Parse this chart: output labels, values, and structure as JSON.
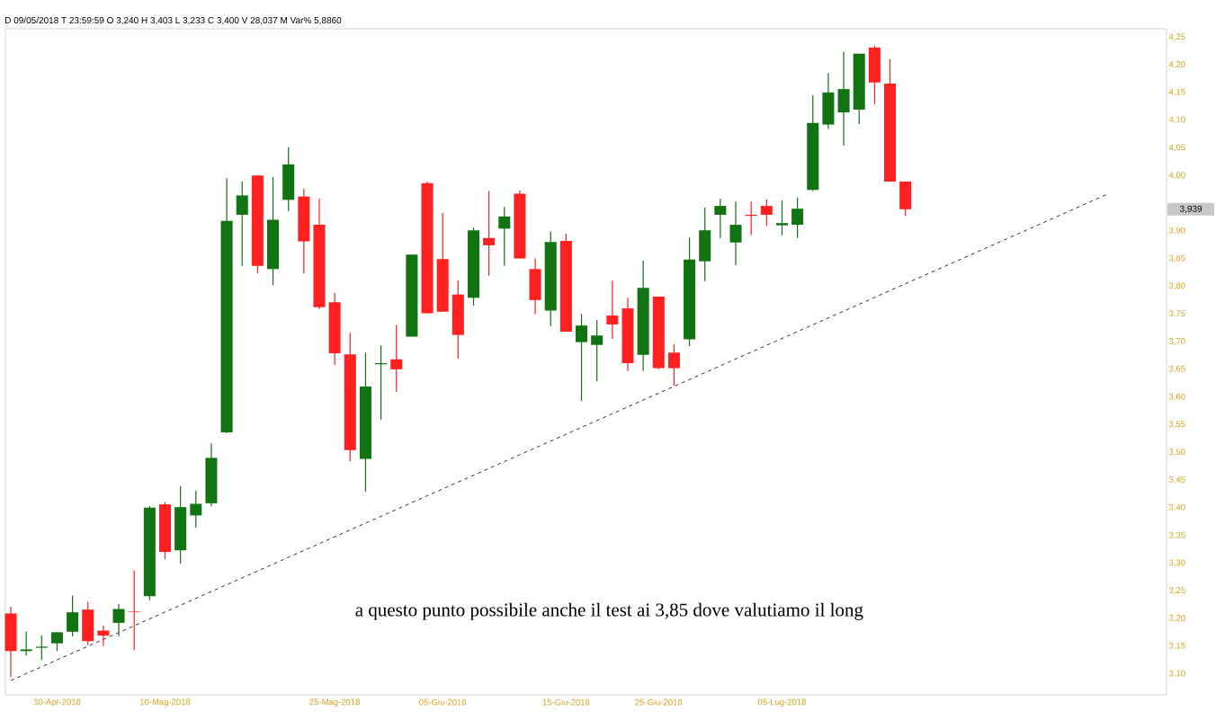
{
  "chart_data": {
    "type": "candlestick",
    "subtitle": "D 09/05/2018  T 23:59:59   O 3,240  H 3,403  L 3,233  C 3,400   V 28,037 M   Var% 5,8860",
    "annotations": [
      "a questo punto possibile anche il test ai 3,85 dove valutiamo il long",
      "3,939"
    ],
    "categories": [
      null,
      null,
      null,
      "30-Apr-2018",
      null,
      null,
      null,
      null,
      null,
      null,
      "10-Mag-2018",
      null,
      null,
      null,
      null,
      null,
      null,
      null,
      null,
      null,
      null,
      "25-Mag-2018",
      null,
      null,
      null,
      null,
      null,
      null,
      "05-Giu-2018",
      null,
      null,
      null,
      null,
      null,
      null,
      null,
      "15-Giu-2018",
      null,
      null,
      null,
      null,
      null,
      "25-Giu-2018",
      null,
      null,
      null,
      null,
      null,
      null,
      null,
      "05-Lug-2018",
      null,
      null,
      null,
      null,
      null,
      null,
      null,
      null,
      null,
      null,
      null,
      null,
      null,
      null,
      null,
      null,
      null,
      null,
      null,
      null,
      null,
      null,
      null,
      null
    ],
    "ohlc": [
      [
        3.209,
        3.221,
        3.094,
        3.141
      ],
      [
        3.141,
        3.176,
        3.133,
        3.144
      ],
      [
        3.147,
        3.169,
        3.125,
        3.149
      ],
      [
        3.155,
        3.175,
        3.141,
        3.175
      ],
      [
        3.176,
        3.241,
        3.168,
        3.211
      ],
      [
        3.216,
        3.23,
        3.152,
        3.159
      ],
      [
        3.178,
        3.187,
        3.15,
        3.169
      ],
      [
        3.192,
        3.226,
        3.168,
        3.217
      ],
      [
        3.213,
        3.287,
        3.143,
        3.212
      ],
      [
        3.24,
        3.403,
        3.233,
        3.4
      ],
      [
        3.406,
        3.41,
        3.307,
        3.32
      ],
      [
        3.323,
        3.439,
        3.299,
        3.401
      ],
      [
        3.386,
        3.431,
        3.364,
        3.407
      ],
      [
        3.408,
        3.516,
        3.403,
        3.49
      ],
      [
        3.536,
        3.995,
        3.535,
        3.918
      ],
      [
        3.929,
        3.989,
        3.837,
        3.964
      ],
      [
        4.0,
        4.0,
        3.824,
        3.837
      ],
      [
        3.831,
        3.997,
        3.802,
        3.92
      ],
      [
        3.956,
        4.051,
        3.936,
        4.02
      ],
      [
        3.962,
        3.976,
        3.823,
        3.881
      ],
      [
        3.911,
        3.958,
        3.759,
        3.762
      ],
      [
        3.771,
        3.788,
        3.658,
        3.679
      ],
      [
        3.677,
        3.716,
        3.484,
        3.504
      ],
      [
        3.488,
        3.68,
        3.429,
        3.619
      ],
      [
        3.659,
        3.693,
        3.559,
        3.661
      ],
      [
        3.668,
        3.73,
        3.609,
        3.65
      ],
      [
        3.709,
        3.857,
        3.709,
        3.857
      ],
      [
        3.986,
        3.989,
        3.751,
        3.751
      ],
      [
        3.849,
        3.932,
        3.754,
        3.754
      ],
      [
        3.785,
        3.811,
        3.669,
        3.712
      ],
      [
        3.779,
        3.906,
        3.765,
        3.901
      ],
      [
        3.887,
        3.972,
        3.819,
        3.874
      ],
      [
        3.904,
        3.943,
        3.837,
        3.926
      ],
      [
        3.967,
        3.973,
        3.85,
        3.85
      ],
      [
        3.831,
        3.85,
        3.749,
        3.775
      ],
      [
        3.756,
        3.899,
        3.728,
        3.88
      ],
      [
        3.882,
        3.895,
        3.718,
        3.718
      ],
      [
        3.699,
        3.75,
        3.593,
        3.729
      ],
      [
        3.694,
        3.739,
        3.628,
        3.711
      ],
      [
        3.747,
        3.81,
        3.705,
        3.731
      ],
      [
        3.76,
        3.779,
        3.647,
        3.661
      ],
      [
        3.676,
        3.846,
        3.647,
        3.797
      ],
      [
        3.781,
        3.781,
        3.65,
        3.652
      ],
      [
        3.68,
        3.695,
        3.62,
        3.652
      ],
      [
        3.704,
        3.888,
        3.692,
        3.848
      ],
      [
        3.845,
        3.942,
        3.809,
        3.901
      ],
      [
        3.929,
        3.958,
        3.887,
        3.945
      ],
      [
        3.879,
        3.953,
        3.838,
        3.911
      ],
      [
        3.929,
        3.953,
        3.892,
        3.927
      ],
      [
        3.945,
        3.957,
        3.909,
        3.929
      ],
      [
        3.91,
        3.955,
        3.892,
        3.914
      ],
      [
        3.911,
        3.96,
        3.887,
        3.94
      ],
      [
        3.974,
        4.145,
        3.972,
        4.095
      ],
      [
        4.092,
        4.185,
        4.084,
        4.15
      ],
      [
        4.114,
        4.223,
        4.054,
        4.156
      ],
      [
        4.119,
        4.22,
        4.093,
        4.22
      ],
      [
        4.231,
        4.235,
        4.129,
        4.168
      ],
      [
        4.166,
        4.21,
        3.989,
        3.989
      ],
      [
        3.989,
        3.989,
        3.927,
        3.939
      ],
      null,
      null,
      null,
      null,
      null,
      null,
      null,
      null,
      null,
      null,
      null,
      null,
      null,
      null,
      null,
      null
    ],
    "colors": [
      "#ff2020",
      "#127312",
      "#127312",
      "#127312",
      "#127312",
      "#ff2020",
      "#ff2020",
      "#127312",
      "#ff2020",
      "#127312",
      "#ff2020",
      "#127312",
      "#127312",
      "#127312",
      "#127312",
      "#127312",
      "#ff2020",
      "#127312",
      "#127312",
      "#ff2020",
      "#ff2020",
      "#ff2020",
      "#ff2020",
      "#127312",
      "#127312",
      "#ff2020",
      "#127312",
      "#ff2020",
      "#ff2020",
      "#ff2020",
      "#127312",
      "#ff2020",
      "#127312",
      "#ff2020",
      "#ff2020",
      "#127312",
      "#ff2020",
      "#127312",
      "#127312",
      "#ff2020",
      "#ff2020",
      "#127312",
      "#ff2020",
      "#ff2020",
      "#127312",
      "#127312",
      "#127312",
      "#127312",
      "#ff2020",
      "#ff2020",
      "#127312",
      "#127312",
      "#127312",
      "#127312",
      "#127312",
      "#127312",
      "#ff2020",
      "#ff2020",
      "#ff2020",
      null,
      null,
      null,
      null,
      null,
      null,
      null,
      null,
      null,
      null,
      null,
      null,
      null,
      null,
      null,
      null
    ],
    "series": [
      {
        "type": "line",
        "color": "#000000",
        "line_style": "dashed",
        "values": [
          3.088,
          null,
          null,
          null,
          null,
          null,
          null,
          null,
          null,
          null,
          null,
          null,
          null,
          null,
          null,
          null,
          null,
          null,
          null,
          null,
          null,
          null,
          null,
          null,
          null,
          null,
          null,
          null,
          null,
          null,
          null,
          null,
          null,
          null,
          null,
          null,
          null,
          null,
          null,
          null,
          null,
          null,
          null,
          null,
          null,
          null,
          null,
          null,
          null,
          null,
          null,
          null,
          null,
          null,
          null,
          null,
          null,
          null,
          null,
          null,
          null,
          null,
          null,
          null,
          null,
          null,
          null,
          null,
          null,
          null,
          null,
          3.965,
          null,
          null,
          null
        ]
      }
    ],
    "ylim": [
      3.062,
      4.265
    ],
    "yticks": [
      {
        "value": 3.1,
        "label": "3,10"
      },
      {
        "value": 3.15,
        "label": "3,15"
      },
      {
        "value": 3.2,
        "label": "3,20"
      },
      {
        "value": 3.25,
        "label": "3,25"
      },
      {
        "value": 3.3,
        "label": "3,30"
      },
      {
        "value": 3.35,
        "label": "3,35"
      },
      {
        "value": 3.4,
        "label": "3,40"
      },
      {
        "value": 3.45,
        "label": "3,45"
      },
      {
        "value": 3.5,
        "label": "3,50"
      },
      {
        "value": 3.55,
        "label": "3,55"
      },
      {
        "value": 3.6,
        "label": "3,60"
      },
      {
        "value": 3.65,
        "label": "3,65"
      },
      {
        "value": 3.7,
        "label": "3,70"
      },
      {
        "value": 3.75,
        "label": "3,75"
      },
      {
        "value": 3.8,
        "label": "3,80"
      },
      {
        "value": 3.85,
        "label": "3,85"
      },
      {
        "value": 3.9,
        "label": "3,90"
      },
      {
        "value": 4.0,
        "label": "4,00"
      },
      {
        "value": 4.05,
        "label": "4,05"
      },
      {
        "value": 4.1,
        "label": "4,10"
      },
      {
        "value": 4.15,
        "label": "4,15"
      },
      {
        "value": 4.2,
        "label": "4,20"
      },
      {
        "value": 4.25,
        "label": "4,25"
      }
    ]
  }
}
